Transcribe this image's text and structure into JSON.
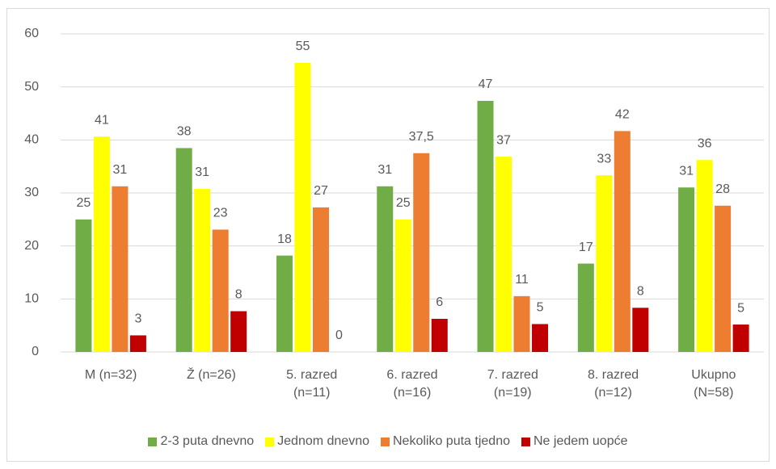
{
  "chart_data": {
    "type": "bar",
    "categories": [
      "M (n=32)",
      "Ž (n=26)",
      "5. razred (n=11)",
      "6. razred (n=16)",
      "7. razred (n=19)",
      "8. razred (n=12)",
      "Ukupno (N=58)"
    ],
    "series": [
      {
        "name": "2-3 puta dnevno",
        "color": "#70ad47",
        "values": [
          25,
          38.46,
          18.18,
          31.25,
          47.37,
          16.67,
          31.03
        ],
        "value_labels": [
          "25",
          "38",
          "18",
          "31",
          "47",
          "17",
          "31"
        ]
      },
      {
        "name": "Jednom dnevno",
        "color": "#ffff00",
        "values": [
          40.63,
          30.77,
          54.55,
          25,
          36.84,
          33.33,
          36.21
        ],
        "value_labels": [
          "41",
          "31",
          "55",
          "25",
          "37",
          "33",
          "36"
        ]
      },
      {
        "name": "Nekoliko puta tjedno",
        "color": "#ed7d31",
        "values": [
          31.25,
          23.08,
          27.27,
          37.5,
          10.53,
          41.67,
          27.59
        ],
        "value_labels": [
          "31",
          "23",
          "27",
          "37,5",
          "11",
          "42",
          "28"
        ]
      },
      {
        "name": "Ne jedem uopće",
        "color": "#c00000",
        "values": [
          3.13,
          7.69,
          0,
          6.25,
          5.26,
          8.33,
          5.17
        ],
        "value_labels": [
          "3",
          "8",
          "0",
          "6",
          "5",
          "8",
          "5"
        ]
      }
    ],
    "ylim": [
      0,
      60
    ],
    "yticks": [
      0,
      10,
      20,
      30,
      40,
      50,
      60
    ],
    "grid": true,
    "legend": "bottom"
  }
}
